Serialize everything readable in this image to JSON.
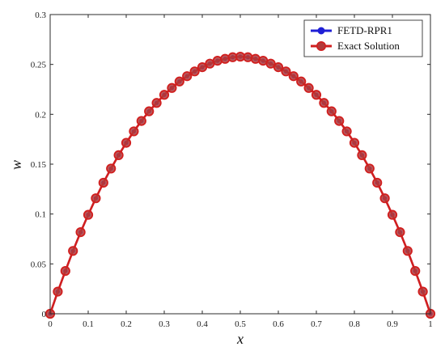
{
  "chart_data": {
    "type": "line",
    "title": "",
    "xlabel": "x",
    "ylabel": "w",
    "xlim": [
      0,
      1
    ],
    "ylim": [
      0,
      0.3
    ],
    "xticks": [
      0,
      0.1,
      0.2,
      0.3,
      0.4,
      0.5,
      0.6,
      0.7,
      0.8,
      0.9,
      1
    ],
    "xtick_labels": [
      "0",
      "0.1",
      "0.2",
      "0.3",
      "0.4",
      "0.5",
      "0.6",
      "0.7",
      "0.8",
      "0.9",
      "1"
    ],
    "yticks": [
      0,
      0.05,
      0.1,
      0.15,
      0.2,
      0.25,
      0.3
    ],
    "ytick_labels": [
      "0",
      "0.05",
      "0.1",
      "0.15",
      "0.2",
      "0.25",
      "0.3"
    ],
    "grid": false,
    "legend_position": "top-right",
    "x": [
      0,
      0.02,
      0.04,
      0.06,
      0.08,
      0.1,
      0.12,
      0.14,
      0.16,
      0.18,
      0.2,
      0.22,
      0.24,
      0.26,
      0.28,
      0.3,
      0.32,
      0.34,
      0.36,
      0.38,
      0.4,
      0.42,
      0.44,
      0.46,
      0.48,
      0.5,
      0.52,
      0.54,
      0.56,
      0.58,
      0.6,
      0.62,
      0.64,
      0.66,
      0.68,
      0.7,
      0.72,
      0.74,
      0.76,
      0.78,
      0.8,
      0.82,
      0.84,
      0.86,
      0.88,
      0.9,
      0.92,
      0.94,
      0.96,
      0.98,
      1
    ],
    "series": [
      {
        "name": "FETD-RPR1",
        "color": "#1f1fd6",
        "marker": "point",
        "values": [
          0,
          0.0222,
          0.0429,
          0.063,
          0.0818,
          0.0992,
          0.1158,
          0.1314,
          0.1456,
          0.159,
          0.1714,
          0.1829,
          0.1933,
          0.203,
          0.2114,
          0.2195,
          0.2264,
          0.2329,
          0.2382,
          0.243,
          0.2472,
          0.2508,
          0.2537,
          0.2556,
          0.2572,
          0.2578,
          0.2572,
          0.2556,
          0.2537,
          0.2508,
          0.2472,
          0.243,
          0.2382,
          0.2329,
          0.2264,
          0.2195,
          0.2114,
          0.203,
          0.1933,
          0.1829,
          0.1714,
          0.159,
          0.1456,
          0.1314,
          0.1158,
          0.0992,
          0.0818,
          0.063,
          0.0429,
          0.0222,
          0
        ]
      },
      {
        "name": "Exact Solution",
        "color": "#d11f1f",
        "marker": "circle",
        "values": [
          0,
          0.0222,
          0.0429,
          0.063,
          0.0818,
          0.0992,
          0.1158,
          0.1314,
          0.1456,
          0.159,
          0.1714,
          0.1829,
          0.1933,
          0.203,
          0.2114,
          0.2195,
          0.2264,
          0.2329,
          0.2382,
          0.243,
          0.2472,
          0.2508,
          0.2537,
          0.2556,
          0.2572,
          0.2578,
          0.2572,
          0.2556,
          0.2537,
          0.2508,
          0.2472,
          0.243,
          0.2382,
          0.2329,
          0.2264,
          0.2195,
          0.2114,
          0.203,
          0.1933,
          0.1829,
          0.1714,
          0.159,
          0.1456,
          0.1314,
          0.1158,
          0.0992,
          0.0818,
          0.063,
          0.0429,
          0.0222,
          0
        ]
      }
    ]
  }
}
